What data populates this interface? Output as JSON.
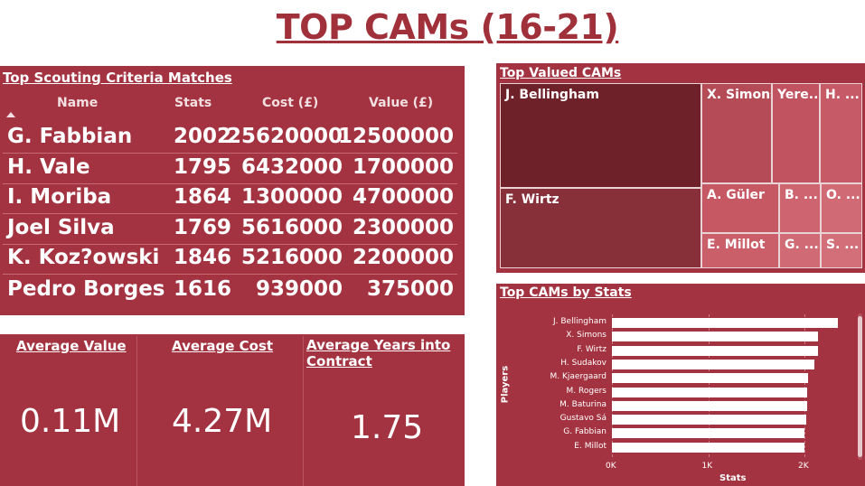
{
  "title": "TOP CAMs (16-21)",
  "scouting": {
    "title": "Top Scouting Criteria Matches",
    "columns": [
      "Name",
      "Stats",
      "Cost (£)",
      "Value (£)"
    ],
    "rows": [
      {
        "name": "G. Fabbian",
        "stats": "2002",
        "cost": "25620000",
        "value": "12500000"
      },
      {
        "name": "H. Vale",
        "stats": "1795",
        "cost": "6432000",
        "value": "1700000"
      },
      {
        "name": "I. Moriba",
        "stats": "1864",
        "cost": "1300000",
        "value": "4700000"
      },
      {
        "name": "Joel Silva",
        "stats": "1769",
        "cost": "5616000",
        "value": "2300000"
      },
      {
        "name": "K. Koz?owski",
        "stats": "1846",
        "cost": "5216000",
        "value": "2200000"
      },
      {
        "name": "Pedro Borges",
        "stats": "1616",
        "cost": "939000",
        "value": "375000"
      }
    ]
  },
  "kpis": {
    "avg_value": {
      "label": "Average Value",
      "value": "0.11M"
    },
    "avg_cost": {
      "label": "Average Cost",
      "value": "4.27M"
    },
    "avg_years": {
      "label": "Average Years into Contract",
      "value": "1.75"
    }
  },
  "treemap": {
    "title": "Top Valued CAMs",
    "tiles": [
      {
        "label": "J. Bellingham",
        "color": "#6e2129"
      },
      {
        "label": "F. Wirtz",
        "color": "#873039"
      },
      {
        "label": "X. Simons",
        "color": "#b44b57"
      },
      {
        "label": "Yere...",
        "color": "#c0535f"
      },
      {
        "label": "H. ...",
        "color": "#c65a66"
      },
      {
        "label": "A. Güler",
        "color": "#c65863"
      },
      {
        "label": "B. ...",
        "color": "#cd6470"
      },
      {
        "label": "O. ...",
        "color": "#d06a75"
      },
      {
        "label": "E. Millot",
        "color": "#ca5f6a"
      },
      {
        "label": "G. ...",
        "color": "#d06a75"
      },
      {
        "label": "S. ...",
        "color": "#d36f79"
      }
    ]
  },
  "chart_data": {
    "type": "bar",
    "title": "Top CAMs by Stats",
    "xlabel": "Stats",
    "ylabel": "Players",
    "orientation": "horizontal",
    "categories": [
      "J. Bellingham",
      "X. Simons",
      "F. Wirtz",
      "H. Sudakov",
      "M. Kjaergaard",
      "M. Rogers",
      "M. Baturina",
      "Gustavo Sá",
      "G. Fabbian",
      "E. Millot"
    ],
    "values": [
      2350,
      2140,
      2140,
      2100,
      2035,
      2030,
      2030,
      2020,
      2002,
      2000
    ],
    "xlim": [
      0,
      2400
    ],
    "xticks": [
      "0K",
      "1K",
      "2K"
    ],
    "grid": true
  }
}
